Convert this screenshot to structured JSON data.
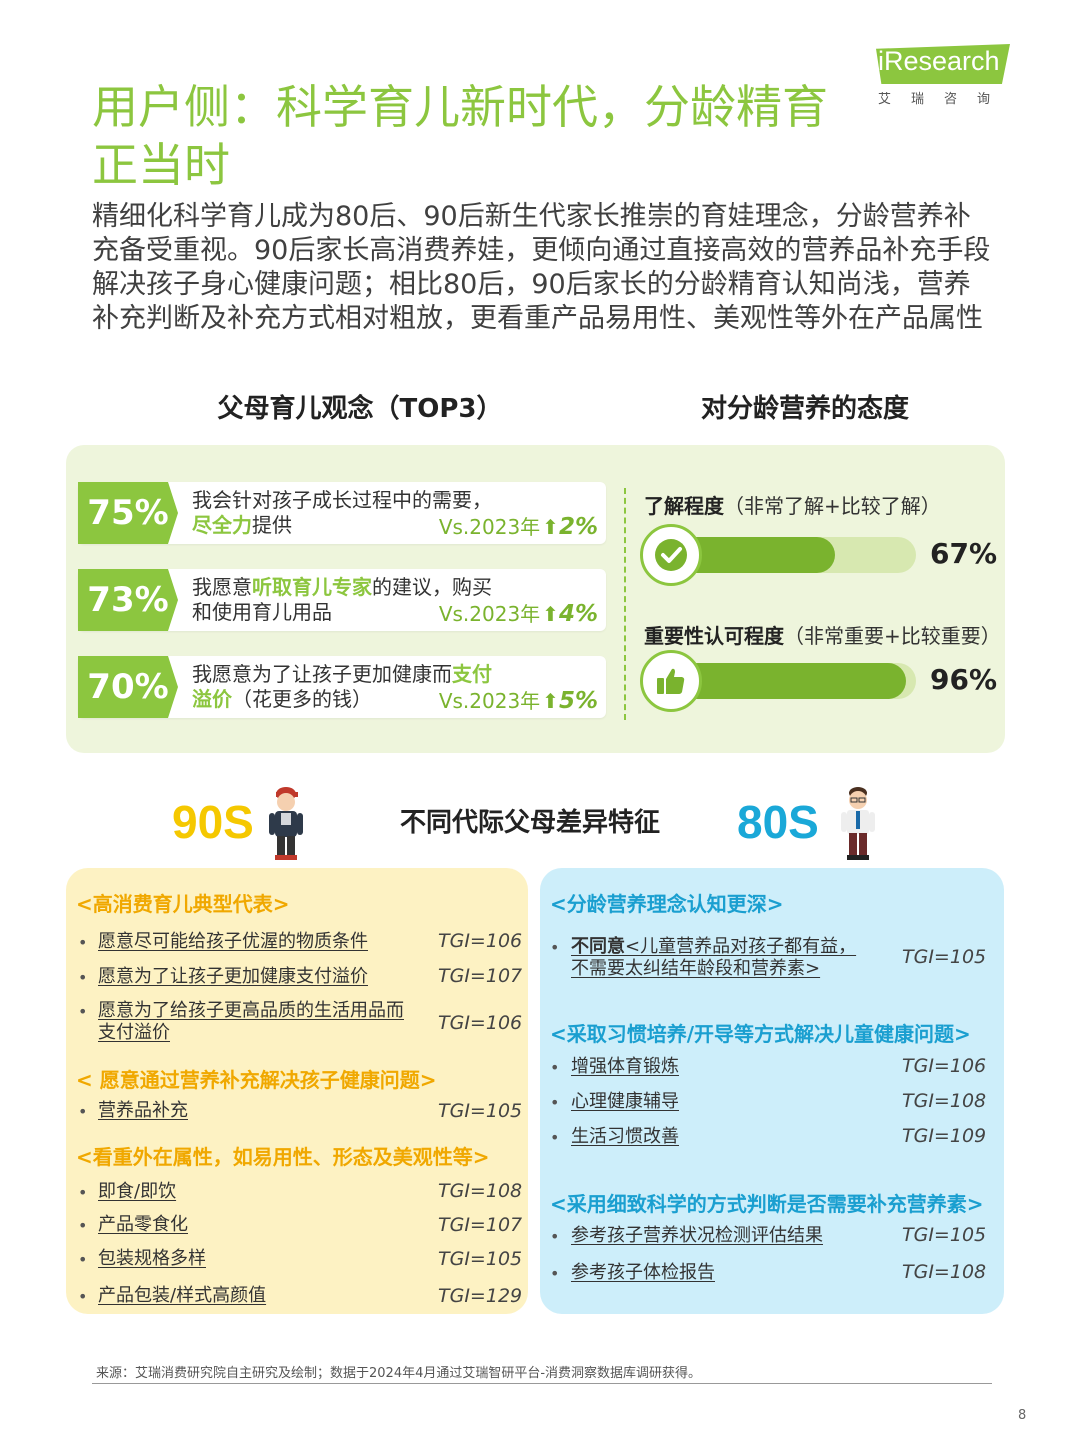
{
  "logo": {
    "brand": "iResearch",
    "cn": "艾瑞咨询",
    "color": "#8cc63f"
  },
  "title": "用户侧：科学育儿新时代，分龄精育正当时",
  "intro": "精细化科学育儿成为80后、90后新生代家长推崇的育娃理念，分龄营养补充备受重视。90后家长高消费养娃，更倾向通过直接高效的营养品补充手段解决孩子身心健康问题；相比80后，90后家长的分龄精育认知尚浅，营养补充判断及补充方式相对粗放，更看重产品易用性、美观性等外在产品属性",
  "left_section_title": "父母育儿观念（TOP3）",
  "right_section_title": "对分龄营养的态度",
  "concepts": [
    {
      "pct": "75%",
      "text_a": "我会针对孩子成长过程中的需要，",
      "highlight": "尽全力",
      "text_b": "提供",
      "vs": "Vs.2023年",
      "delta": "2%"
    },
    {
      "pct": "73%",
      "text_a": "我愿意",
      "highlight": "听取育儿专家",
      "text_b": "的建议，购买和使用育儿用品",
      "vs": "Vs.2023年",
      "delta": "4%"
    },
    {
      "pct": "70%",
      "text_a": "我愿意为了让孩子更加健康而",
      "highlight": "支付溢价",
      "text_b": "（花更多的钱）",
      "vs": "Vs.2023年",
      "delta": "5%"
    }
  ],
  "attitudes": [
    {
      "label_bold": "了解程度",
      "label_rest": "（非常了解+比较了解）",
      "value": "67%",
      "fraction": 0.67,
      "icon": "check-icon"
    },
    {
      "label_bold": "重要性认可程度",
      "label_rest": "（非常重要+比较重要）",
      "value": "96%",
      "fraction": 0.96,
      "icon": "thumbs-up-icon"
    }
  ],
  "generation_title": "不同代际父母差异特征",
  "gen_90": {
    "label": "90S",
    "color": "#f5c800",
    "groups": [
      {
        "heading": "<高消费育儿典型代表>",
        "items": [
          {
            "text": "愿意尽可能给孩子优渥的物质条件",
            "tgi": "TGI=106"
          },
          {
            "text": "愿意为了让孩子更加健康支付溢价",
            "tgi": "TGI=107"
          },
          {
            "text": "愿意为了给孩子更高品质的生活用品而支付溢价",
            "tgi": "TGI=106"
          }
        ]
      },
      {
        "heading": "< 愿意通过营养补充解决孩子健康问题>",
        "items": [
          {
            "text": "营养品补充",
            "tgi": "TGI=105"
          }
        ]
      },
      {
        "heading": "<看重外在属性，如易用性、形态及美观性等>",
        "items": [
          {
            "text": "即食/即饮",
            "tgi": "TGI=108"
          },
          {
            "text": "产品零食化",
            "tgi": "TGI=107"
          },
          {
            "text": "包装规格多样",
            "tgi": "TGI=105"
          },
          {
            "text": "产品包装/样式高颜值",
            "tgi": "TGI=129"
          }
        ]
      }
    ]
  },
  "gen_80": {
    "label": "80S",
    "color": "#1aa8d8",
    "groups": [
      {
        "heading": "<分龄营养理念认知更深>",
        "items": [
          {
            "text_bold": "不同意",
            "text": "<儿童营养品对孩子都有益，不需要太纠结年龄段和营养素>",
            "tgi": "TGI=105"
          }
        ]
      },
      {
        "heading": "<采取习惯培养/开导等方式解决儿童健康问题>",
        "items": [
          {
            "text": "增强体育锻炼",
            "tgi": "TGI=106"
          },
          {
            "text": "心理健康辅导",
            "tgi": "TGI=108"
          },
          {
            "text": "生活习惯改善",
            "tgi": "TGI=109"
          }
        ]
      },
      {
        "heading": "<采用细致科学的方式判断是否需要补充营养素>",
        "items": [
          {
            "text": "参考孩子营养状况检测评估结果",
            "tgi": "TGI=105"
          },
          {
            "text": "参考孩子体检报告",
            "tgi": "TGI=108"
          }
        ]
      }
    ]
  },
  "source": "来源：艾瑞消费研究院自主研究及绘制；数据于2024年4月通过艾瑞智研平台-消费洞察数据库调研获得。",
  "page_number": "8"
}
